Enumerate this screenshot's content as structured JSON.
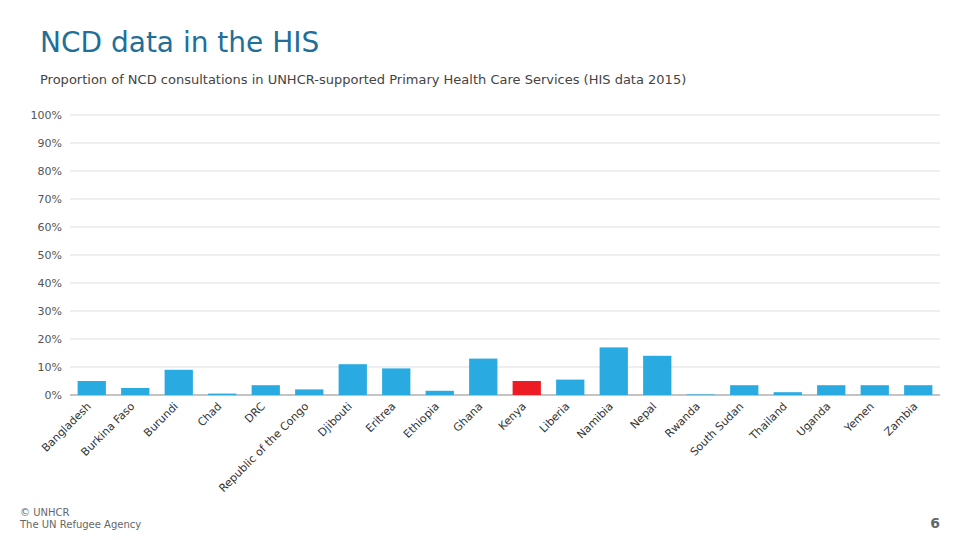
{
  "chart_data": {
    "type": "bar",
    "title": "NCD data in the HIS",
    "subtitle": "Proportion of NCD consultations in UNHCR-supported Primary Health Care Services (HIS data 2015)",
    "categories": [
      "Bangladesh",
      "Burkina Faso",
      "Burundi",
      "Chad",
      "DRC",
      "Republic of the Congo",
      "Djibouti",
      "Eritrea",
      "Ethiopia",
      "Ghana",
      "Kenya",
      "Liberia",
      "Namibia",
      "Nepal",
      "Rwanda",
      "South Sudan",
      "Thailand",
      "Uganda",
      "Yemen",
      "Zambia"
    ],
    "values": [
      5.0,
      2.5,
      9.0,
      0.5,
      3.5,
      2.0,
      11.0,
      9.5,
      1.5,
      13.0,
      5.0,
      5.5,
      17.0,
      14.0,
      0.2,
      3.5,
      1.0,
      3.5,
      3.5,
      3.5
    ],
    "colors": [
      "#29ABE2",
      "#29ABE2",
      "#29ABE2",
      "#29ABE2",
      "#29ABE2",
      "#29ABE2",
      "#29ABE2",
      "#29ABE2",
      "#29ABE2",
      "#29ABE2",
      "#ED1C24",
      "#29ABE2",
      "#29ABE2",
      "#29ABE2",
      "#29ABE2",
      "#29ABE2",
      "#29ABE2",
      "#29ABE2",
      "#29ABE2",
      "#29ABE2"
    ],
    "ylim": [
      0,
      100
    ],
    "yticks": [
      {
        "value": 0,
        "label": "0%"
      },
      {
        "value": 10,
        "label": "10%"
      },
      {
        "value": 20,
        "label": "20%"
      },
      {
        "value": 30,
        "label": "30%"
      },
      {
        "value": 40,
        "label": "40%"
      },
      {
        "value": 50,
        "label": "50%"
      },
      {
        "value": 60,
        "label": "60%"
      },
      {
        "value": 70,
        "label": "70%"
      },
      {
        "value": 80,
        "label": "80%"
      },
      {
        "value": 90,
        "label": "90%"
      },
      {
        "value": 100,
        "label": "100%"
      }
    ],
    "grid": true,
    "annotations": [
      "© UNHCR\nThe UN Refugee Agency",
      "6"
    ]
  }
}
